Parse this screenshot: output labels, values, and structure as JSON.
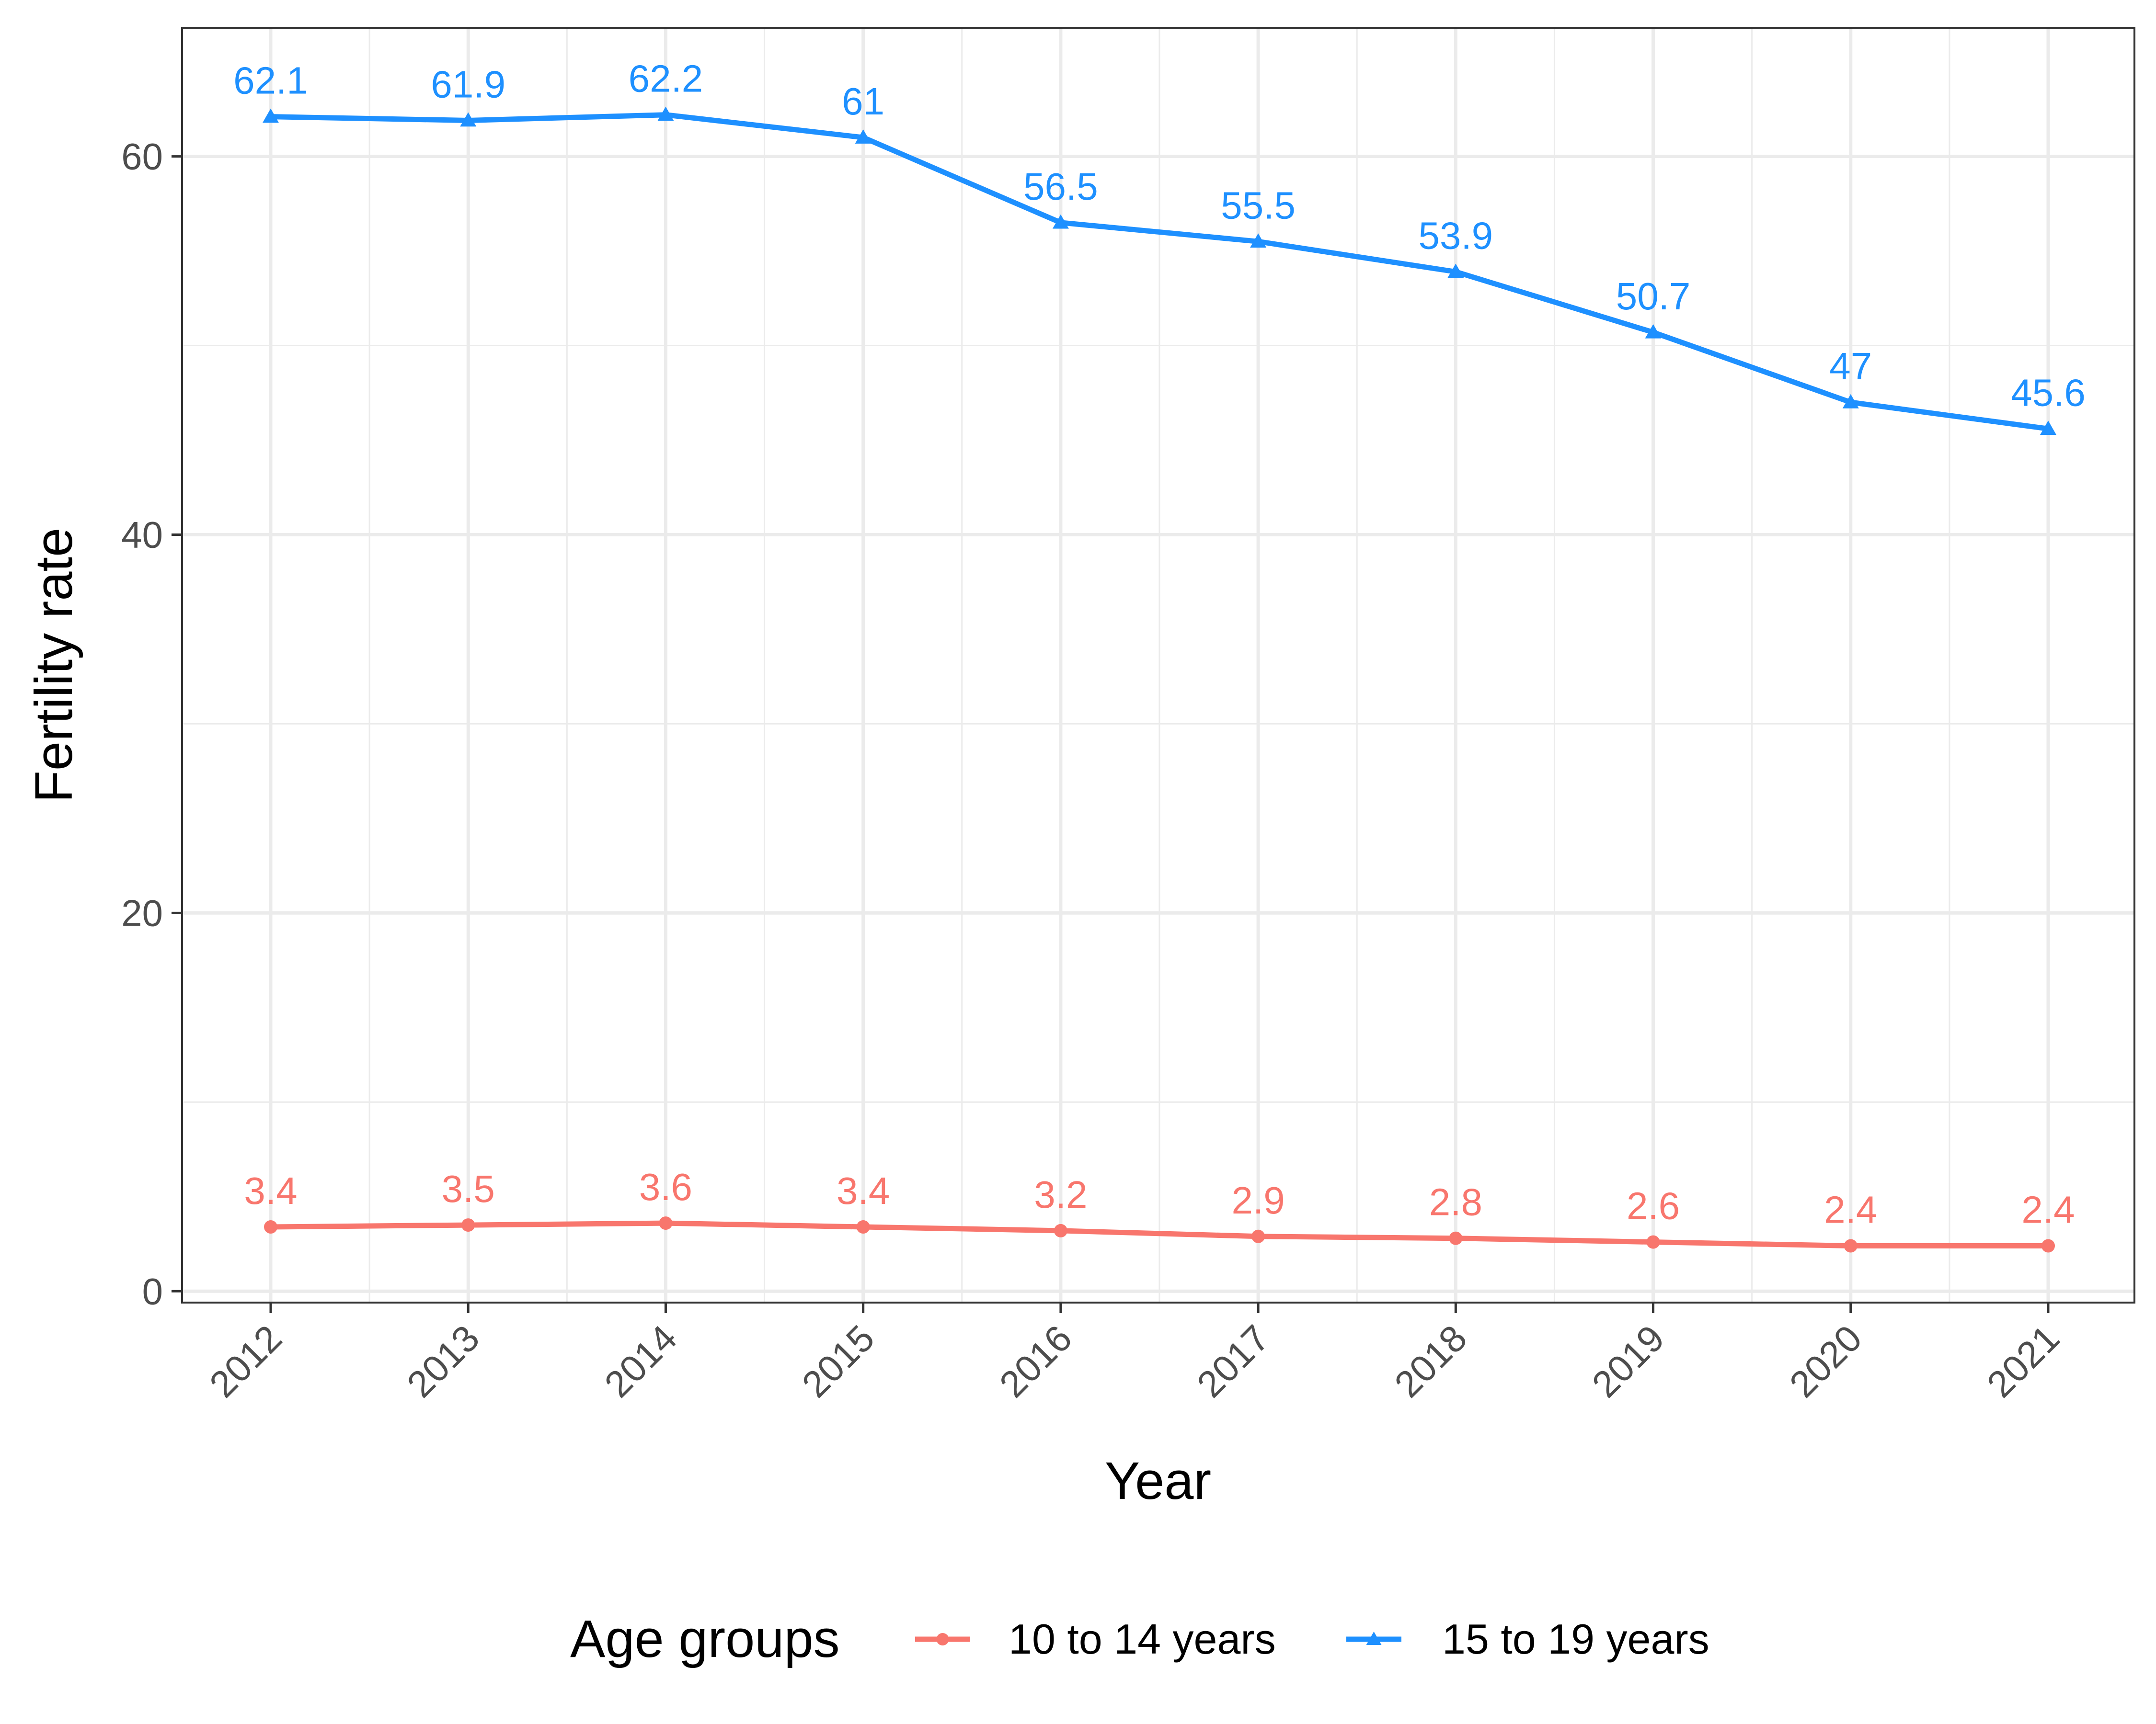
{
  "chart_data": {
    "type": "line",
    "xlabel": "Year",
    "ylabel": "Fertility rate",
    "categories": [
      "2012",
      "2013",
      "2014",
      "2015",
      "2016",
      "2017",
      "2018",
      "2019",
      "2020",
      "2021"
    ],
    "yticks": [
      0,
      20,
      40,
      60
    ],
    "ylim": [
      -0.6,
      66.8
    ],
    "grid": true,
    "legend": {
      "title": "Age groups",
      "position": "bottom"
    },
    "series": [
      {
        "name": "10 to 14 years",
        "marker": "circle",
        "color": "#F8766D",
        "values": [
          3.4,
          3.5,
          3.6,
          3.4,
          3.2,
          2.9,
          2.8,
          2.6,
          2.4,
          2.4
        ],
        "labels": [
          "3.4",
          "3.5",
          "3.6",
          "3.4",
          "3.2",
          "2.9",
          "2.8",
          "2.6",
          "2.4",
          "2.4"
        ]
      },
      {
        "name": "15 to 19 years",
        "marker": "triangle",
        "color": "#1E90FF",
        "values": [
          62.1,
          61.9,
          62.2,
          61,
          56.5,
          55.5,
          53.9,
          50.7,
          47,
          45.6
        ],
        "labels": [
          "62.1",
          "61.9",
          "62.2",
          "61",
          "56.5",
          "55.5",
          "53.9",
          "50.7",
          "47",
          "45.6"
        ]
      }
    ]
  }
}
